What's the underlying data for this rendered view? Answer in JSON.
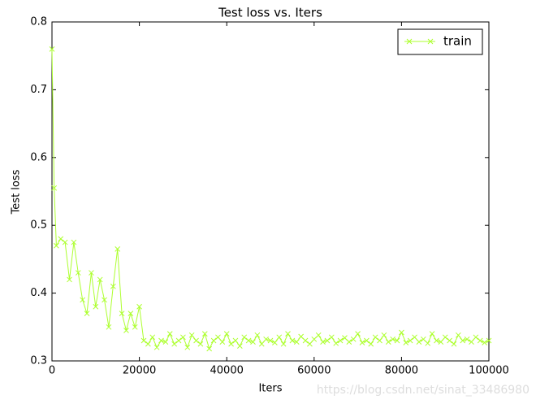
{
  "chart_data": {
    "type": "line",
    "title": "Test loss  vs. Iters",
    "x_label": "Iters",
    "y_label": "Test loss",
    "x": [
      0,
      500,
      1000,
      2000,
      3000,
      4000,
      5000,
      6000,
      7000,
      8000,
      9000,
      10000,
      11000,
      12000,
      13000,
      14000,
      15000,
      16000,
      17000,
      18000,
      19000,
      20000,
      21000,
      22000,
      23000,
      24000,
      25000,
      26000,
      27000,
      28000,
      29000,
      30000,
      31000,
      32000,
      33000,
      34000,
      35000,
      36000,
      37000,
      38000,
      39000,
      40000,
      41000,
      42000,
      43000,
      44000,
      45000,
      46000,
      47000,
      48000,
      49000,
      50000,
      51000,
      52000,
      53000,
      54000,
      55000,
      56000,
      57000,
      58000,
      59000,
      60000,
      61000,
      62000,
      63000,
      64000,
      65000,
      66000,
      67000,
      68000,
      69000,
      70000,
      71000,
      72000,
      73000,
      74000,
      75000,
      76000,
      77000,
      78000,
      79000,
      80000,
      81000,
      82000,
      83000,
      84000,
      85000,
      86000,
      87000,
      88000,
      89000,
      90000,
      91000,
      92000,
      93000,
      94000,
      95000,
      96000,
      97000,
      98000,
      99000,
      100000
    ],
    "series": [
      {
        "name": "train",
        "color": "#adff2f",
        "marker": "x",
        "values": [
          0.76,
          0.555,
          0.47,
          0.48,
          0.475,
          0.42,
          0.475,
          0.43,
          0.39,
          0.37,
          0.43,
          0.38,
          0.42,
          0.39,
          0.35,
          0.41,
          0.465,
          0.37,
          0.345,
          0.37,
          0.35,
          0.38,
          0.33,
          0.325,
          0.335,
          0.32,
          0.33,
          0.328,
          0.34,
          0.325,
          0.33,
          0.335,
          0.32,
          0.338,
          0.33,
          0.325,
          0.34,
          0.318,
          0.33,
          0.335,
          0.328,
          0.34,
          0.325,
          0.33,
          0.322,
          0.335,
          0.33,
          0.328,
          0.338,
          0.325,
          0.332,
          0.33,
          0.327,
          0.335,
          0.325,
          0.34,
          0.33,
          0.328,
          0.336,
          0.33,
          0.325,
          0.332,
          0.338,
          0.328,
          0.33,
          0.335,
          0.326,
          0.33,
          0.334,
          0.328,
          0.332,
          0.34,
          0.327,
          0.33,
          0.325,
          0.335,
          0.33,
          0.338,
          0.328,
          0.332,
          0.33,
          0.342,
          0.327,
          0.33,
          0.335,
          0.328,
          0.332,
          0.326,
          0.34,
          0.33,
          0.328,
          0.335,
          0.33,
          0.325,
          0.338,
          0.33,
          0.332,
          0.328,
          0.335,
          0.33,
          0.327,
          0.33
        ]
      }
    ],
    "xlim": [
      0,
      100000
    ],
    "xticks": [
      0,
      20000,
      40000,
      60000,
      80000,
      100000
    ],
    "ylim": [
      0.3,
      0.8
    ],
    "yticks": [
      0.3,
      0.4,
      0.5,
      0.6,
      0.7,
      0.8
    ],
    "grid": false,
    "legend": "upper right",
    "annotations": [
      "https://blog.csdn.net/sinat_33486980"
    ]
  }
}
